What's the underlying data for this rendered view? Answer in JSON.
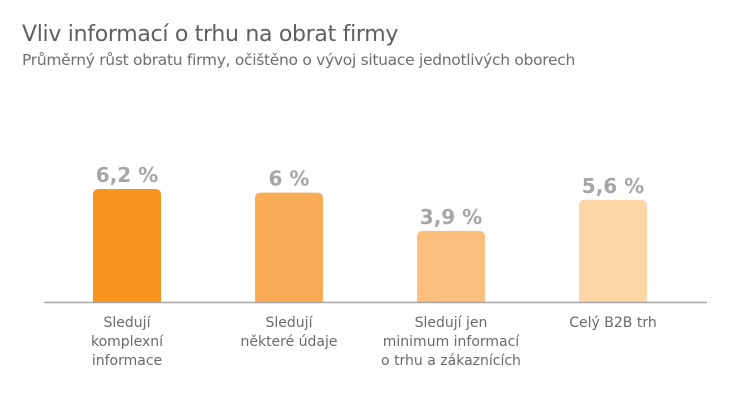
{
  "title": "Vliv informací o trhu na obrat firmy",
  "subtitle": "Průměrný růst obratu firmy, očištěno o vývoj situace jednotlivých oborech",
  "chart_data": {
    "type": "bar",
    "categories": [
      [
        "Sledují",
        "komplexní",
        "informace"
      ],
      [
        "Sledují",
        "některé údaje"
      ],
      [
        "Sledují jen",
        "minimum informací",
        "o trhu a zákaznících"
      ],
      [
        "Celý B2B trh"
      ]
    ],
    "values": [
      6.2,
      6.0,
      3.9,
      5.6
    ],
    "value_labels": [
      "6,2 %",
      "6 %",
      "3,9 %",
      "5,6 %"
    ],
    "unit": "%",
    "bar_colors": [
      "#f7941d",
      "#f9ab55",
      "#fbbf7d",
      "#fcd6a5"
    ],
    "axis_color": "#a6a6a6",
    "value_label_color": "#a6a6a6",
    "ylim": [
      0,
      6.2
    ],
    "grid": false,
    "legend": "none"
  }
}
